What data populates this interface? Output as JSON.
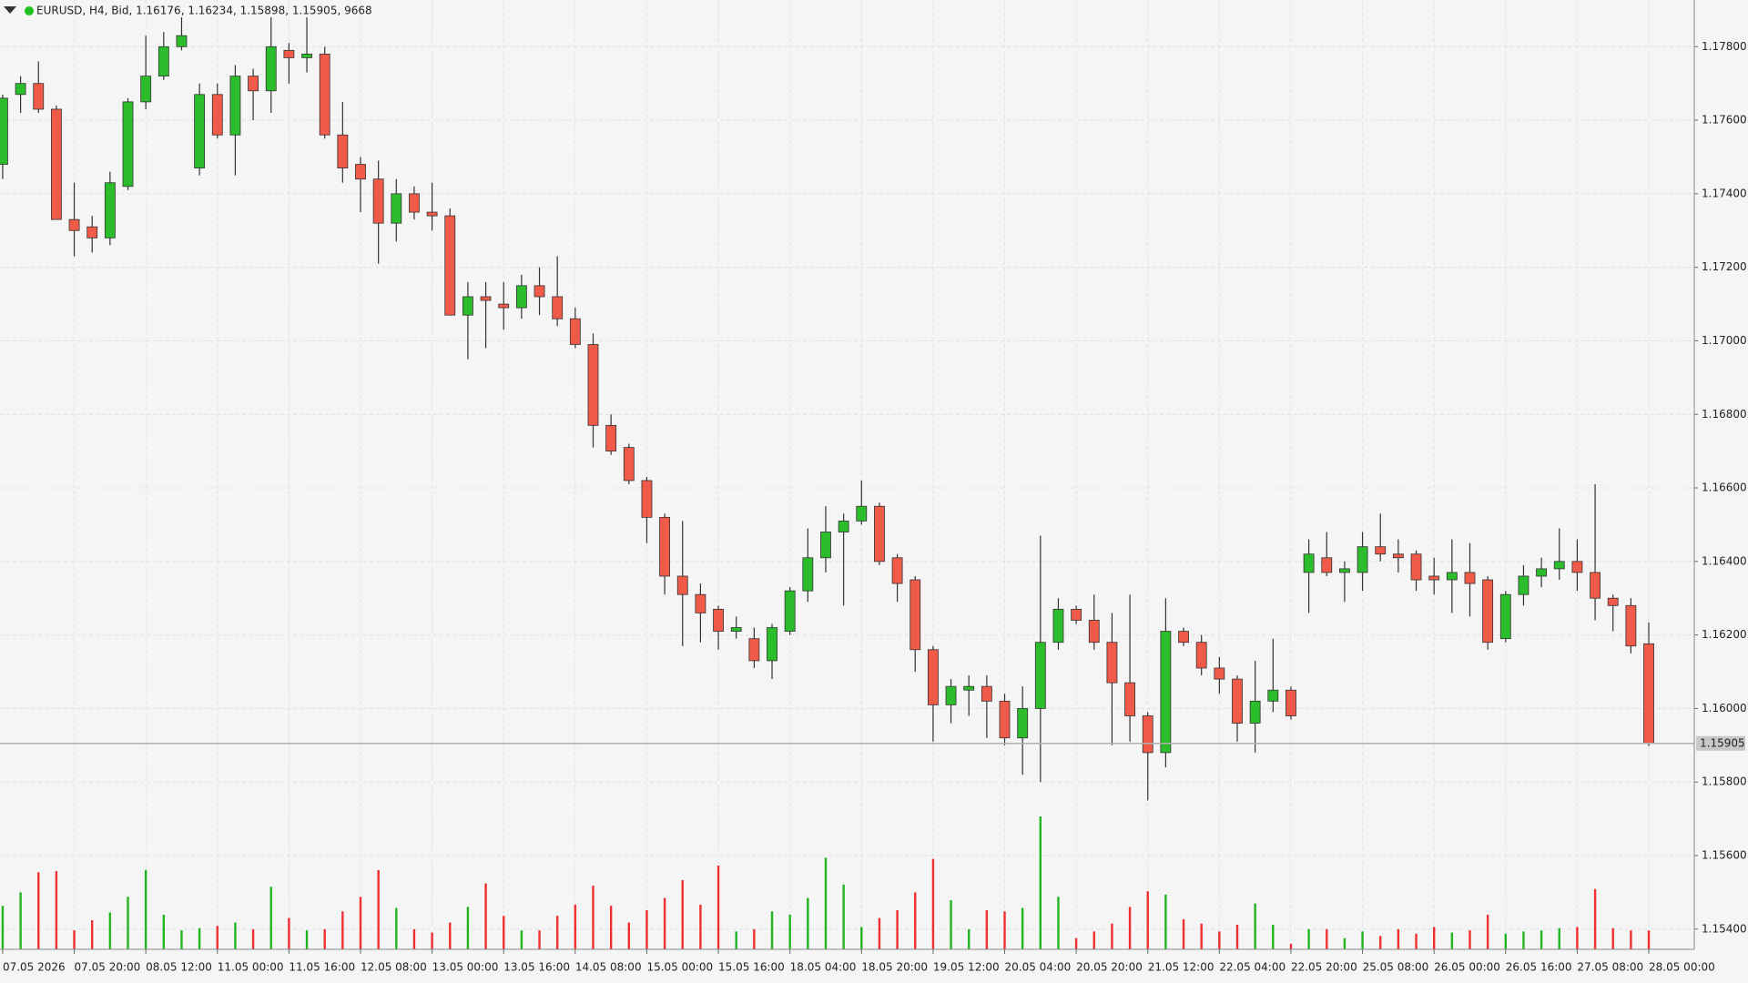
{
  "chart_data": {
    "type": "candlestick",
    "title": "EURUSD, H4, Bid, 1.16176, 1.16234, 1.15898, 1.15905, 9668",
    "categories": [
      "07.05 2026",
      null,
      null,
      null,
      "07.05 20:00",
      null,
      null,
      null,
      "08.05 12:00",
      null,
      null,
      null,
      "11.05 00:00",
      null,
      null,
      null,
      "11.05 16:00",
      null,
      null,
      null,
      "12.05 08:00",
      null,
      null,
      null,
      "13.05 00:00",
      null,
      null,
      null,
      "13.05 16:00",
      null,
      null,
      null,
      "14.05 08:00",
      null,
      null,
      null,
      "15.05 00:00",
      null,
      null,
      null,
      "15.05 16:00",
      null,
      null,
      null,
      "18.05 04:00",
      null,
      null,
      null,
      "18.05 20:00",
      null,
      null,
      null,
      "19.05 12:00",
      null,
      null,
      null,
      "20.05 04:00",
      null,
      null,
      null,
      "20.05 20:00",
      null,
      null,
      null,
      "21.05 12:00",
      null,
      null,
      null,
      "22.05 04:00",
      null,
      null,
      null,
      "22.05 20:00",
      null,
      null,
      null,
      "25.05 08:00",
      null,
      null,
      null,
      "26.05 00:00",
      null,
      null,
      null,
      "26.05 16:00",
      null,
      null,
      null,
      "27.05 08:00",
      null,
      null,
      null,
      "28.05 00:00"
    ],
    "open": [
      1.1748,
      1.1767,
      1.177,
      1.1763,
      1.1733,
      1.1731,
      1.1728,
      1.1742,
      1.1765,
      1.1772,
      1.178,
      1.1747,
      1.1767,
      1.1756,
      1.1772,
      1.1768,
      1.1779,
      1.1777,
      1.1778,
      1.1756,
      1.1748,
      1.1744,
      1.1732,
      1.174,
      1.1735,
      1.1734,
      1.1707,
      1.1712,
      1.171,
      1.1709,
      1.1715,
      1.1712,
      1.1706,
      1.1699,
      1.1677,
      1.1671,
      1.1662,
      1.1652,
      1.1636,
      1.1631,
      1.1627,
      1.1621,
      1.1619,
      1.1613,
      1.1621,
      1.1632,
      1.1641,
      1.1648,
      1.1651,
      1.1655,
      1.1641,
      1.1635,
      1.1616,
      1.1601,
      1.1605,
      1.1606,
      1.1602,
      1.1592,
      1.16,
      1.1618,
      1.1627,
      1.1624,
      1.1618,
      1.1607,
      1.1598,
      1.1588,
      1.1621,
      1.1618,
      1.1611,
      1.1608,
      1.1596,
      1.1602,
      1.1605,
      1.1637,
      1.1641,
      1.1637,
      1.1637,
      1.1644,
      1.1642,
      1.1642,
      1.1636,
      1.1635,
      1.1637,
      1.1635,
      1.1619,
      1.1631,
      1.1636,
      1.1638,
      1.164,
      1.1637,
      1.163,
      1.1628,
      1.16176
    ],
    "high": [
      1.1767,
      1.1772,
      1.1776,
      1.1764,
      1.1743,
      1.1734,
      1.1746,
      1.1766,
      1.1783,
      1.1784,
      1.1788,
      1.177,
      1.177,
      1.1775,
      1.1774,
      1.1788,
      1.1781,
      1.1788,
      1.178,
      1.1765,
      1.175,
      1.1749,
      1.1744,
      1.1742,
      1.1743,
      1.1736,
      1.1716,
      1.1716,
      1.1716,
      1.1718,
      1.172,
      1.1723,
      1.1709,
      1.1702,
      1.168,
      1.1672,
      1.1663,
      1.1653,
      1.1651,
      1.1634,
      1.1628,
      1.1625,
      1.1622,
      1.1623,
      1.1633,
      1.1649,
      1.1655,
      1.1653,
      1.1662,
      1.1656,
      1.1642,
      1.1636,
      1.1617,
      1.1608,
      1.1609,
      1.1609,
      1.1604,
      1.1606,
      1.1647,
      1.163,
      1.1628,
      1.1631,
      1.1626,
      1.1631,
      1.1599,
      1.163,
      1.1622,
      1.162,
      1.1614,
      1.1609,
      1.1613,
      1.1619,
      1.1606,
      1.1646,
      1.1648,
      1.164,
      1.1648,
      1.1653,
      1.1646,
      1.1643,
      1.1641,
      1.1646,
      1.1645,
      1.1636,
      1.1632,
      1.1639,
      1.1641,
      1.1649,
      1.1646,
      1.1661,
      1.1631,
      1.163,
      1.16234
    ],
    "low": [
      1.1744,
      1.1762,
      1.1762,
      1.1733,
      1.1723,
      1.1724,
      1.1726,
      1.1741,
      1.1763,
      1.1771,
      1.1779,
      1.1745,
      1.1755,
      1.1745,
      1.176,
      1.1762,
      1.177,
      1.1773,
      1.1755,
      1.1743,
      1.1735,
      1.1721,
      1.1727,
      1.1733,
      1.173,
      1.1707,
      1.1695,
      1.1698,
      1.1703,
      1.1706,
      1.1707,
      1.1704,
      1.1698,
      1.1671,
      1.1669,
      1.1661,
      1.1645,
      1.1631,
      1.1617,
      1.1618,
      1.1616,
      1.1619,
      1.1611,
      1.1608,
      1.162,
      1.1629,
      1.1637,
      1.1628,
      1.165,
      1.1639,
      1.1629,
      1.161,
      1.1591,
      1.1596,
      1.1598,
      1.1592,
      1.159,
      1.1582,
      1.158,
      1.1616,
      1.1623,
      1.1616,
      1.159,
      1.1591,
      1.1575,
      1.1584,
      1.1617,
      1.1609,
      1.1604,
      1.1591,
      1.1588,
      1.1599,
      1.1597,
      1.1626,
      1.1636,
      1.1629,
      1.1632,
      1.164,
      1.1637,
      1.1632,
      1.1631,
      1.1626,
      1.1625,
      1.1616,
      1.1618,
      1.1628,
      1.1633,
      1.1635,
      1.1632,
      1.1624,
      1.1621,
      1.1615,
      1.15898
    ],
    "close": [
      1.1766,
      1.177,
      1.1763,
      1.1733,
      1.173,
      1.1728,
      1.1743,
      1.1765,
      1.1772,
      1.178,
      1.1783,
      1.1767,
      1.1756,
      1.1772,
      1.1768,
      1.178,
      1.1777,
      1.1778,
      1.1756,
      1.1747,
      1.1744,
      1.1732,
      1.174,
      1.1735,
      1.1734,
      1.1707,
      1.1712,
      1.1711,
      1.1709,
      1.1715,
      1.1712,
      1.1706,
      1.1699,
      1.1677,
      1.167,
      1.1662,
      1.1652,
      1.1636,
      1.1631,
      1.1626,
      1.1621,
      1.1622,
      1.1613,
      1.1622,
      1.1632,
      1.1641,
      1.1648,
      1.1651,
      1.1655,
      1.164,
      1.1634,
      1.1616,
      1.1601,
      1.1606,
      1.1606,
      1.1602,
      1.1592,
      1.16,
      1.1618,
      1.1627,
      1.1624,
      1.1618,
      1.1607,
      1.1598,
      1.1588,
      1.1621,
      1.1618,
      1.1611,
      1.1608,
      1.1596,
      1.1602,
      1.1605,
      1.1598,
      1.1642,
      1.1637,
      1.1638,
      1.1644,
      1.1642,
      1.1641,
      1.1635,
      1.1635,
      1.1637,
      1.1634,
      1.1618,
      1.1631,
      1.1636,
      1.1638,
      1.164,
      1.1637,
      1.163,
      1.1628,
      1.1617,
      1.15905
    ],
    "volume": [
      22230,
      29070,
      39330,
      39900,
      9690,
      14820,
      18810,
      26790,
      40470,
      17670,
      9690,
      10830,
      11970,
      13680,
      10260,
      31920,
      15960,
      9690,
      10260,
      19380,
      26790,
      40470,
      21090,
      10260,
      8550,
      13680,
      21660,
      33630,
      17100,
      9690,
      9690,
      17100,
      22800,
      32490,
      22230,
      13680,
      19950,
      26220,
      35340,
      22800,
      42750,
      9120,
      10260,
      19380,
      17670,
      26220,
      46740,
      33060,
      11400,
      15960,
      19950,
      29070,
      46170,
      25080,
      10260,
      19950,
      19380,
      21090,
      67830,
      26790,
      5700,
      9120,
      13110,
      21660,
      29640,
      27930,
      15390,
      13110,
      9120,
      12540,
      23370,
      12540,
      2850,
      10260,
      10260,
      5700,
      9120,
      6840,
      10260,
      7980,
      11400,
      8550,
      9690,
      17670,
      7980,
      9120,
      9690,
      10830,
      11400,
      30780,
      10830,
      9690,
      9668
    ],
    "up_color": "#2bbd2b",
    "down_color": "#f05a48",
    "volume_color": "#22b522",
    "volume_down_color": "#f03030",
    "ylim": [
      1.15345,
      1.17927
    ],
    "yticks": [
      {
        "value": 1.154,
        "label": "1.15400"
      },
      {
        "value": 1.156,
        "label": "1.15600"
      },
      {
        "value": 1.158,
        "label": "1.15800"
      },
      {
        "value": 1.16,
        "label": "1.16000"
      },
      {
        "value": 1.162,
        "label": "1.16200"
      },
      {
        "value": 1.164,
        "label": "1.16400"
      },
      {
        "value": 1.166,
        "label": "1.16600"
      },
      {
        "value": 1.168,
        "label": "1.16800"
      },
      {
        "value": 1.17,
        "label": "1.17000"
      },
      {
        "value": 1.172,
        "label": "1.17200"
      },
      {
        "value": 1.174,
        "label": "1.17400"
      },
      {
        "value": 1.176,
        "label": "1.17600"
      },
      {
        "value": 1.178,
        "label": "1.17800"
      }
    ],
    "bid_line": 1.15905,
    "grid": true
  }
}
